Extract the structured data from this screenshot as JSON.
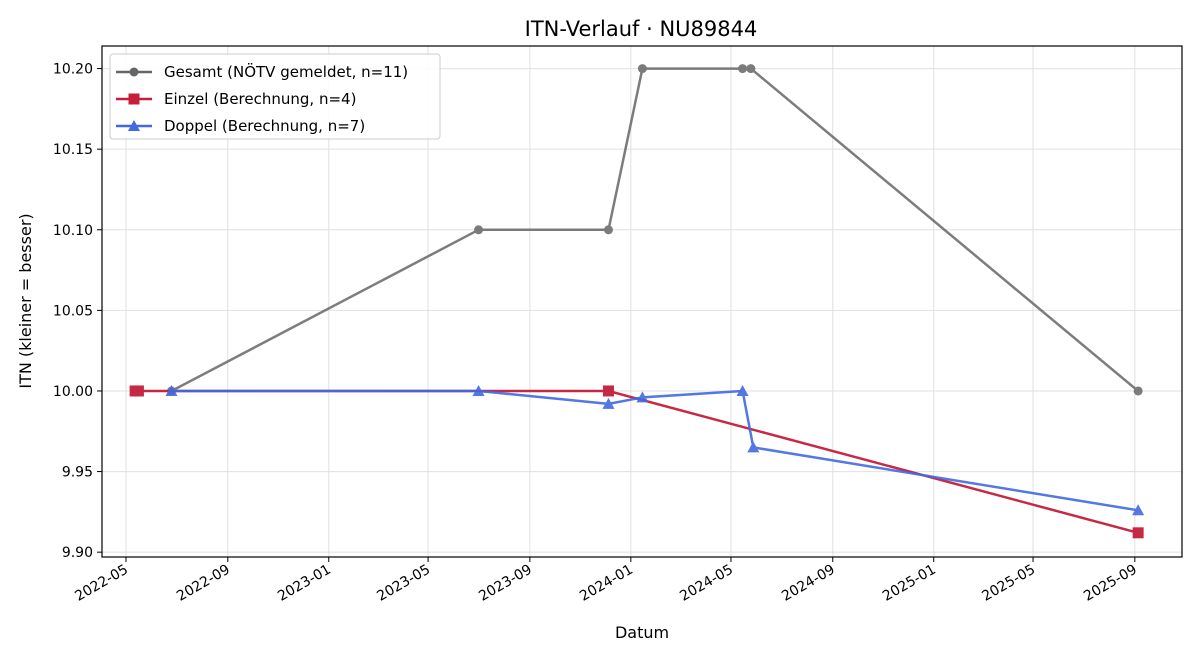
{
  "chart_data": {
    "type": "line",
    "title": "ITN-Verlauf · NU89844",
    "xlabel": "Datum",
    "ylabel": "ITN  (kleiner = besser)",
    "xlim": [
      "2022-04-02",
      "2025-10-28"
    ],
    "ylim": [
      9.897,
      10.214
    ],
    "x_ticks": [
      "2022-05",
      "2022-09",
      "2023-01",
      "2023-05",
      "2023-09",
      "2024-01",
      "2024-05",
      "2024-09",
      "2025-01",
      "2025-05",
      "2025-09"
    ],
    "y_ticks": [
      "9.90",
      "9.95",
      "10.00",
      "10.05",
      "10.10",
      "10.15",
      "10.20"
    ],
    "grid": true,
    "legend_position": "top-left",
    "series": [
      {
        "name": "Gesamt (NÖTV gemeldet, n=11)",
        "color": "#666666",
        "marker": "circle",
        "points": [
          {
            "x": "2022-06-25",
            "y": 10.0
          },
          {
            "x": "2023-07-01",
            "y": 10.1
          },
          {
            "x": "2023-12-05",
            "y": 10.1
          },
          {
            "x": "2024-01-15",
            "y": 10.2
          },
          {
            "x": "2024-05-15",
            "y": 10.2
          },
          {
            "x": "2024-05-25",
            "y": 10.2
          },
          {
            "x": "2025-09-05",
            "y": 10.0
          }
        ]
      },
      {
        "name": "Einzel (Berechnung, n=4)",
        "color": "#c41e3a",
        "marker": "square",
        "points": [
          {
            "x": "2022-05-12",
            "y": 10.0
          },
          {
            "x": "2022-05-16",
            "y": 10.0
          },
          {
            "x": "2023-12-05",
            "y": 10.0
          },
          {
            "x": "2025-09-05",
            "y": 9.912
          }
        ]
      },
      {
        "name": "Doppel (Berechnung, n=7)",
        "color": "#4169e1",
        "marker": "triangle",
        "points": [
          {
            "x": "2022-06-25",
            "y": 10.0
          },
          {
            "x": "2023-07-01",
            "y": 10.0
          },
          {
            "x": "2023-12-05",
            "y": 9.992
          },
          {
            "x": "2024-01-15",
            "y": 9.996
          },
          {
            "x": "2024-05-15",
            "y": 10.0
          },
          {
            "x": "2024-05-28",
            "y": 9.965
          },
          {
            "x": "2025-09-05",
            "y": 9.926
          }
        ]
      }
    ]
  }
}
